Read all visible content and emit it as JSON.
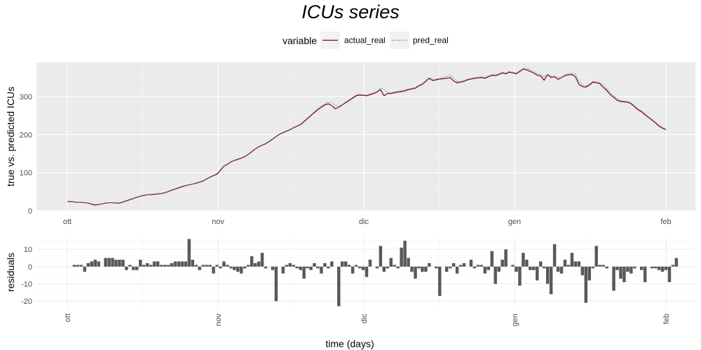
{
  "chart_data": [
    {
      "type": "line",
      "title": "ICUs series",
      "ylabel": "true vs. predicted ICUs",
      "xlabel": "",
      "x_ticks": [
        "ott",
        "nov",
        "dic",
        "gen",
        "feb"
      ],
      "y_ticks": [
        0,
        100,
        200,
        300
      ],
      "ylim": [
        0,
        390
      ],
      "grid": true,
      "legend": {
        "title": "variable",
        "position": "top",
        "entries": [
          "actual_real",
          "pred_real"
        ]
      },
      "series": [
        {
          "name": "actual_real",
          "color": "#8b0000",
          "style": "solid",
          "values": [
            24,
            24,
            23,
            22,
            22,
            21,
            20,
            17,
            15,
            16,
            18,
            20,
            21,
            21,
            20,
            20,
            23,
            26,
            29,
            32,
            35,
            38,
            40,
            42,
            42,
            43,
            44,
            45,
            47,
            50,
            54,
            57,
            60,
            63,
            66,
            68,
            70,
            72,
            75,
            78,
            83,
            88,
            92,
            96,
            106,
            117,
            122,
            128,
            132,
            135,
            138,
            142,
            148,
            155,
            162,
            168,
            172,
            176,
            182,
            188,
            195,
            201,
            205,
            209,
            213,
            218,
            222,
            226,
            234,
            242,
            250,
            258,
            266,
            272,
            278,
            281,
            276,
            268,
            272,
            278,
            284,
            290,
            296,
            302,
            304,
            303,
            302,
            305,
            308,
            312,
            318,
            302,
            308,
            308,
            310,
            312,
            313,
            315,
            318,
            320,
            322,
            328,
            332,
            340,
            348,
            342,
            344,
            346,
            347,
            348,
            350,
            341,
            336,
            338,
            340,
            344,
            346,
            348,
            349,
            350,
            348,
            352,
            356,
            355,
            358,
            362,
            360,
            364,
            362,
            360,
            366,
            372,
            370,
            366,
            362,
            356,
            354,
            343,
            358,
            350,
            352,
            345,
            350,
            355,
            357,
            358,
            352,
            332,
            326,
            325,
            330,
            338,
            336,
            334,
            324,
            316,
            305,
            298,
            290,
            287,
            286,
            285,
            281,
            273,
            265,
            260,
            252,
            245,
            238,
            231,
            222,
            217,
            213
          ]
        },
        {
          "name": "pred_real",
          "color": "#4f81bd",
          "style": "dotted",
          "values": [
            23,
            23,
            23,
            22,
            22,
            21,
            20,
            18,
            16,
            17,
            18,
            20,
            21,
            21,
            20,
            21,
            23,
            27,
            30,
            33,
            36,
            39,
            41,
            42,
            43,
            44,
            45,
            46,
            48,
            51,
            55,
            58,
            61,
            64,
            66,
            68,
            70,
            73,
            76,
            79,
            84,
            89,
            93,
            98,
            108,
            118,
            123,
            129,
            133,
            136,
            139,
            143,
            149,
            156,
            163,
            169,
            173,
            177,
            183,
            189,
            196,
            202,
            206,
            210,
            214,
            219,
            223,
            228,
            236,
            244,
            252,
            260,
            268,
            275,
            281,
            285,
            284,
            277,
            274,
            279,
            286,
            292,
            298,
            304,
            306,
            305,
            304,
            307,
            310,
            314,
            322,
            318,
            311,
            310,
            312,
            314,
            315,
            317,
            320,
            322,
            324,
            330,
            334,
            342,
            350,
            345,
            346,
            348,
            350,
            352,
            357,
            349,
            339,
            340,
            342,
            346,
            348,
            350,
            351,
            352,
            350,
            354,
            358,
            357,
            360,
            364,
            362,
            366,
            364,
            362,
            368,
            374,
            375,
            370,
            366,
            360,
            358,
            351,
            358,
            354,
            353,
            350,
            351,
            357,
            360,
            361,
            359,
            340,
            330,
            328,
            333,
            340,
            339,
            337,
            330,
            320,
            310,
            302,
            295,
            290,
            288,
            287,
            284,
            276,
            268,
            262,
            255,
            247,
            240,
            233,
            225,
            219,
            215
          ]
        }
      ]
    },
    {
      "type": "bar",
      "title": "",
      "ylabel": "residuals",
      "xlabel": "time (days)",
      "x_ticks": [
        "ott",
        "nov",
        "dic",
        "gen",
        "feb"
      ],
      "y_ticks": [
        -20,
        -10,
        0,
        10
      ],
      "ylim": [
        -24,
        17
      ],
      "grid": true,
      "values": [
        0,
        0,
        1,
        1,
        1,
        -3,
        2,
        3,
        4,
        3,
        0,
        5,
        5,
        5,
        4,
        4,
        4,
        -2,
        1,
        -2,
        -2,
        4,
        1,
        2,
        1,
        3,
        3,
        1,
        1,
        1,
        2,
        3,
        3,
        3,
        3,
        16,
        4,
        1,
        -2,
        1,
        1,
        1,
        -4,
        1,
        -1,
        3,
        1,
        -1,
        -2,
        -3,
        -4,
        -1,
        1,
        6,
        2,
        3,
        8,
        -1,
        0,
        -2,
        -20,
        0,
        -4,
        1,
        2,
        1,
        -1,
        -2,
        -7,
        -1,
        -2,
        2,
        -1,
        -4,
        2,
        -1,
        3,
        0,
        -23,
        3,
        3,
        1,
        -4,
        1,
        -1,
        -2,
        -6,
        4,
        0,
        -1,
        12,
        -3,
        -1,
        5,
        1,
        -1,
        11,
        15,
        5,
        -3,
        -7,
        -1,
        -3,
        -3,
        2,
        0,
        -1,
        -17,
        0,
        -3,
        -1,
        2,
        -4,
        1,
        2,
        0,
        4,
        -1,
        1,
        1,
        -4,
        -2,
        9,
        -10,
        -3,
        4,
        10,
        0,
        1,
        -3,
        -11,
        8,
        4,
        -2,
        -2,
        -8,
        3,
        -1,
        -10,
        -16,
        13,
        -3,
        -4,
        4,
        1,
        8,
        3,
        3,
        -5,
        -21,
        -8,
        -1,
        12,
        1,
        1,
        -1,
        0,
        -14,
        -2,
        -7,
        -9,
        -3,
        -4,
        -1,
        0,
        -2,
        -9,
        0,
        -1,
        -1,
        -2,
        -3,
        -2,
        -9,
        1,
        5
      ]
    }
  ]
}
